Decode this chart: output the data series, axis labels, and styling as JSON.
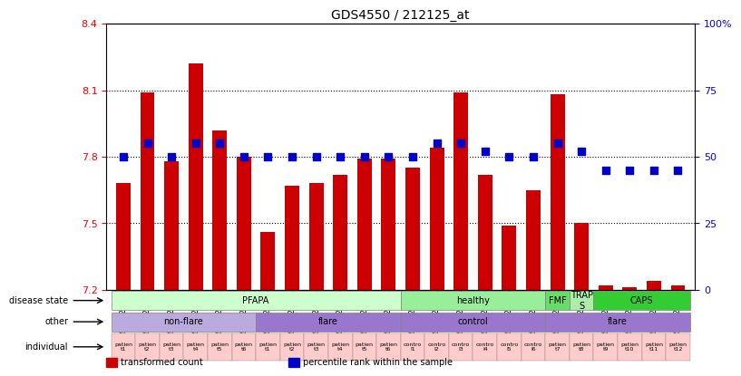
{
  "title": "GDS4550 / 212125_at",
  "samples": [
    "GSM442636",
    "GSM442637",
    "GSM442638",
    "GSM442639",
    "GSM442640",
    "GSM442641",
    "GSM442642",
    "GSM442643",
    "GSM442644",
    "GSM442645",
    "GSM442646",
    "GSM442647",
    "GSM442648",
    "GSM442649",
    "GSM442650",
    "GSM442651",
    "GSM442652",
    "GSM442653",
    "GSM442654",
    "GSM442655",
    "GSM442656",
    "GSM442657",
    "GSM442658",
    "GSM442659"
  ],
  "bar_values": [
    7.68,
    8.09,
    7.78,
    8.22,
    7.92,
    7.8,
    7.46,
    7.67,
    7.68,
    7.72,
    7.79,
    7.79,
    7.75,
    7.84,
    8.09,
    7.72,
    7.49,
    7.65,
    8.08,
    7.5,
    7.22,
    7.21,
    7.24,
    7.22
  ],
  "percentile_values": [
    50,
    55,
    50,
    55,
    55,
    50,
    50,
    50,
    50,
    50,
    50,
    50,
    50,
    55,
    55,
    52,
    50,
    50,
    55,
    52,
    45,
    45,
    45,
    45
  ],
  "ymin": 7.2,
  "ymax": 8.4,
  "yticks": [
    7.2,
    7.5,
    7.8,
    8.1,
    8.4
  ],
  "y2min": 0,
  "y2max": 100,
  "y2ticks": [
    0,
    25,
    50,
    75,
    100
  ],
  "y2ticklabels": [
    "0",
    "25",
    "50",
    "75",
    "100%"
  ],
  "bar_color": "#cc0000",
  "dot_color": "#0000cc",
  "disease_state": {
    "label": "disease state",
    "groups": [
      {
        "text": "PFAPA",
        "start": 0,
        "end": 11,
        "color": "#ccffcc"
      },
      {
        "text": "healthy",
        "start": 12,
        "end": 17,
        "color": "#99ee99"
      },
      {
        "text": "FMF",
        "start": 18,
        "end": 18,
        "color": "#66dd66"
      },
      {
        "text": "TRAP\nS",
        "start": 19,
        "end": 19,
        "color": "#aaeeaa"
      },
      {
        "text": "CAPS",
        "start": 20,
        "end": 23,
        "color": "#33cc33"
      }
    ]
  },
  "other": {
    "label": "other",
    "groups": [
      {
        "text": "non-flare",
        "start": 0,
        "end": 5,
        "color": "#ccbbee"
      },
      {
        "text": "flare",
        "start": 6,
        "end": 11,
        "color": "#9988dd"
      },
      {
        "text": "control",
        "start": 12,
        "end": 17,
        "color": "#9988dd"
      },
      {
        "text": "flare",
        "start": 18,
        "end": 23,
        "color": "#9988dd"
      }
    ]
  },
  "individual": {
    "label": "individual",
    "items": [
      "patien\nt1",
      "patien\nt2",
      "patien\nt3",
      "patien\nt4",
      "patien\nt5",
      "patien\nt6",
      "patien\nt1",
      "patien\nt2",
      "patien\nt3",
      "patien\nt4",
      "patien\nt5",
      "patien\nt6",
      "contro\nl1",
      "contro\nl2",
      "contro\nl3",
      "contro\nl4",
      "contro\nl5",
      "contro\nl6",
      "patien\nt7",
      "patien\nt8",
      "patien\nt9",
      "patien\nt10",
      "patien\nt11",
      "patien\nt12"
    ],
    "colors": [
      "#ffcccc",
      "#ffcccc",
      "#ffcccc",
      "#ffcccc",
      "#ffcccc",
      "#ffcccc",
      "#ffcccc",
      "#ffcccc",
      "#ffcccc",
      "#ffcccc",
      "#ffcccc",
      "#ffcccc",
      "#ffcccc",
      "#ffcccc",
      "#ffcccc",
      "#ffcccc",
      "#ffcccc",
      "#ffcccc",
      "#ffcccc",
      "#ffcccc",
      "#ffcccc",
      "#ffcccc",
      "#ffcccc",
      "#ffcccc"
    ]
  },
  "legend_items": [
    {
      "color": "#cc0000",
      "label": "transformed count"
    },
    {
      "color": "#0000cc",
      "label": "percentile rank within the sample"
    }
  ]
}
